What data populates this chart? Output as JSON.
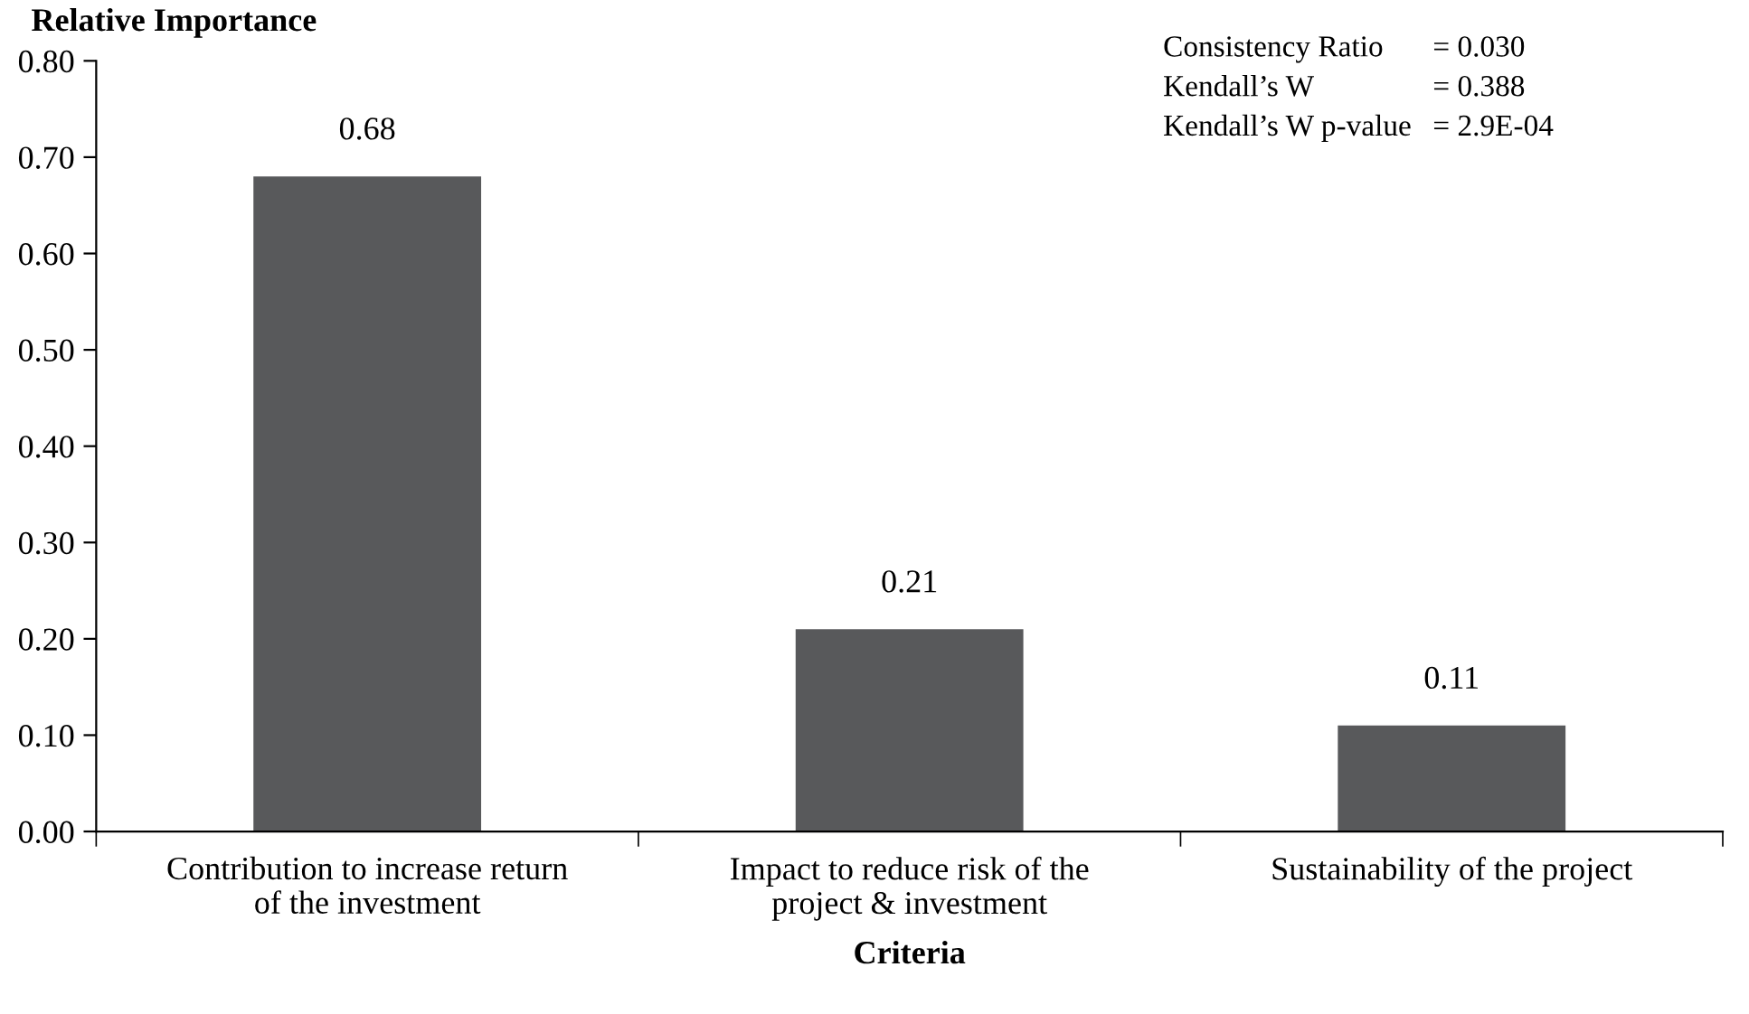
{
  "chart_data": {
    "type": "bar",
    "ylabel": "Relative Importance",
    "xlabel": "Criteria",
    "categories": [
      "Contribution to increase return\nof the investment",
      "Impact to reduce risk of the\nproject & investment",
      "Sustainability of the project"
    ],
    "values": [
      0.68,
      0.21,
      0.11
    ],
    "color": "#58595b",
    "ylim": [
      0,
      0.8
    ],
    "yticks": [
      {
        "value": 0,
        "label": "0.00"
      },
      {
        "value": 0.1,
        "label": "0.10"
      },
      {
        "value": 0.2,
        "label": "0.20"
      },
      {
        "value": 0.3,
        "label": "0.30"
      },
      {
        "value": 0.4,
        "label": "0.40"
      },
      {
        "value": 0.5,
        "label": "0.50"
      },
      {
        "value": 0.6,
        "label": "0.60"
      },
      {
        "value": 0.7,
        "label": "0.70"
      },
      {
        "value": 0.8,
        "label": "0.80"
      }
    ],
    "data_labels": true,
    "grid": false,
    "legend": false,
    "annotations": [
      "Consistency Ratio",
      "= 0.030",
      "Kendall’s W",
      "= 0.388",
      "Kendall’s W p-value",
      "= 2.9E-04"
    ]
  }
}
